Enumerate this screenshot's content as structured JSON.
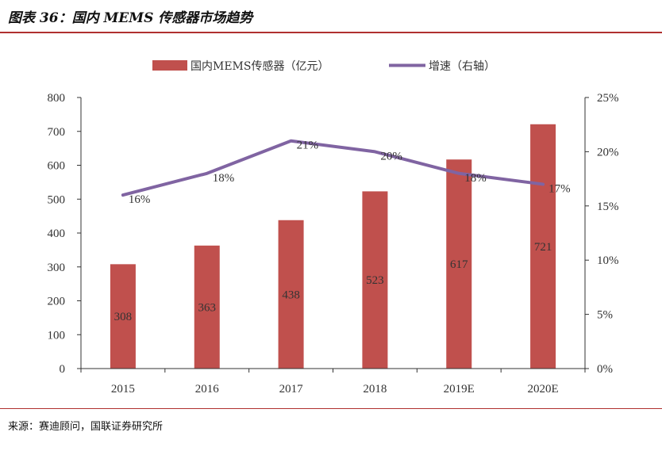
{
  "figure": {
    "title": "图表 36：国内 MEMS 传感器市场趋势",
    "source": "来源：赛迪顾问，国联证券研究所"
  },
  "chart_data": {
    "type": "bar",
    "categories": [
      "2015",
      "2016",
      "2017",
      "2018",
      "2019E",
      "2020E"
    ],
    "series": [
      {
        "name": "国内MEMS传感器（亿元）",
        "type": "bar",
        "axis": "left",
        "values": [
          308,
          363,
          438,
          523,
          617,
          721
        ],
        "labels": [
          "308",
          "363",
          "438",
          "523",
          "617",
          "721"
        ],
        "color": "#c0504d"
      },
      {
        "name": "增速（右轴）",
        "type": "line",
        "axis": "right",
        "values": [
          16,
          18,
          21,
          20,
          18,
          17
        ],
        "labels": [
          "16%",
          "18%",
          "21%",
          "20%",
          "18%",
          "17%"
        ],
        "color": "#8064a2"
      }
    ],
    "y_left": {
      "min": 0,
      "max": 800,
      "ticks": [
        "0",
        "100",
        "200",
        "300",
        "400",
        "500",
        "600",
        "700",
        "800"
      ]
    },
    "y_right": {
      "min": 0,
      "max": 25,
      "ticks": [
        "0%",
        "5%",
        "10%",
        "15%",
        "20%",
        "25%"
      ]
    },
    "legend": "top-center",
    "grid": false
  }
}
